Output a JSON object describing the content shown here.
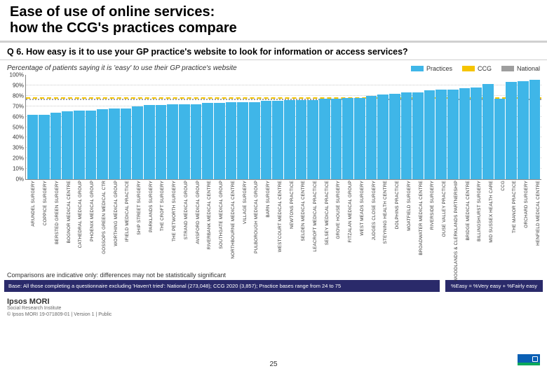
{
  "title": "Ease of use of online services:\nhow the CCG's practices compare",
  "question": "Q 6. How easy is it to use your GP practice's website to look for information or access services?",
  "subtitle": "Percentage of patients saying it is 'easy' to use their GP practice's website",
  "legend": {
    "practices": "Practices",
    "ccg": "CCG",
    "national": "National"
  },
  "colors": {
    "practice_bar": "#3fb6e8",
    "ccg_ref": "#f5c400",
    "national_ref": "#9e9e9e",
    "grid": "#cccccc",
    "axis": "#888888",
    "base_bg": "#2a2a6a",
    "nhs": "#0a5fb4"
  },
  "chart": {
    "type": "bar",
    "ylim": [
      0,
      100
    ],
    "ytick_step": 10,
    "ytick_suffix": "%",
    "ccg_value": 77,
    "national_value": 76,
    "categories": [
      "ARUNDEL SURGERY",
      "COPPICE SURGERY",
      "BERSTED GREEN SURGERY",
      "BOGNOR MEDICAL CENTRE",
      "CATHEDRAL MEDICAL GROUP",
      "PHOENIX MEDICAL GROUP",
      "GOSSOPS GREEN MEDICAL CTR",
      "WORTHING MEDICAL GROUP",
      "IFIELD MEDICAL PRACTICE",
      "SHIP STREET SURGERY",
      "PARKLANDS SURGERY",
      "THE CROFT SURGERY",
      "THE PETWORTH SURGERY",
      "STRAND MEDICAL GROUP",
      "AVISFORD MEDICAL GROUP",
      "RIVERBANK MEDICAL CENTRE",
      "SOUTHGATE MEDICAL GROUP",
      "NORTHBOURNE MEDICAL CENTRE",
      "VILLAGE SURGERY",
      "PULBOROUGH MEDICAL GROUP",
      "BARN SURGERY",
      "WESTCOURT MEDICAL CENTRE",
      "NEWTONS PRACTICE",
      "SELDEN MEDICAL CENTRE",
      "LEACROFT MEDICAL PRACTICE",
      "SELSEY MEDICAL PRACTICE",
      "GROVE HOUSE SURGERY",
      "FITZALAN MEDICAL GROUP",
      "WEST MEADS SURGERY",
      "JUDGES CLOSE SURGERY",
      "STEYNING HEALTH CENTRE",
      "DOLPHINS PRACTICE",
      "MOATFIELD SURGERY",
      "BROADWATER MEDICAL CENTRE",
      "RIVERSIDE SURGERY",
      "OUSE VALLEY PRACTICE",
      "WOODLANDS & CLERKLANDS PARTNERSHIP",
      "BRIDGE MEDICAL CENTRE",
      "BILLINGSHURST SURGERY",
      "MID SUSSEX HEALTH CARE",
      "CCG",
      "THE MANOR PRACTICE",
      "ORCHARD SURGERY",
      "HENFIELD MEDICAL CENTRE"
    ],
    "values": [
      62,
      62,
      64,
      65,
      66,
      66,
      67,
      68,
      68,
      70,
      71,
      71,
      72,
      72,
      72,
      73,
      73,
      74,
      74,
      74,
      75,
      75,
      76,
      76,
      76,
      77,
      77,
      78,
      78,
      80,
      81,
      82,
      83,
      83,
      85,
      86,
      86,
      87,
      88,
      91,
      77,
      93,
      94,
      95
    ]
  },
  "comparison_note": "Comparisons are indicative only: differences may not be statistically significant",
  "base_left": "Base: All those completing a questionnaire excluding 'Haven't tried': National (273,048); CCG 2020 (3,857); Practice bases range from 24 to 75",
  "base_right": "%Easy = %Very easy + %Fairly easy",
  "page_number": "25",
  "ipsos_main": "Ipsos MORI",
  "ipsos_sub": "Social Research Institute",
  "copyright": "© Ipsos MORI    19-071809-01 | Version 1 | Public"
}
